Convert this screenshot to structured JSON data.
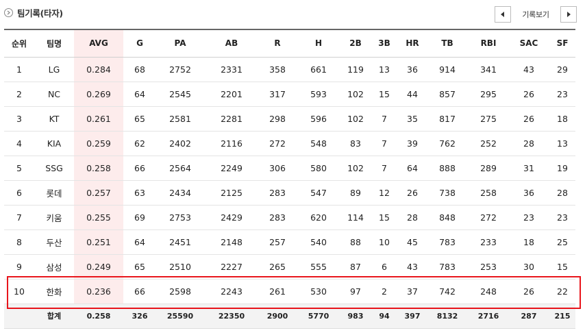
{
  "header": {
    "title": "팀기록(타자)",
    "icon": "circle-arrow-icon",
    "pager_label": "기록보기",
    "prev_icon": "triangle-left-icon",
    "next_icon": "triangle-right-icon"
  },
  "columns": [
    "순위",
    "팀명",
    "AVG",
    "G",
    "PA",
    "AB",
    "R",
    "H",
    "2B",
    "3B",
    "HR",
    "TB",
    "RBI",
    "SAC",
    "SF"
  ],
  "rows": [
    [
      "1",
      "LG",
      "0.284",
      "68",
      "2752",
      "2331",
      "358",
      "661",
      "119",
      "13",
      "36",
      "914",
      "341",
      "43",
      "29"
    ],
    [
      "2",
      "NC",
      "0.269",
      "64",
      "2545",
      "2201",
      "317",
      "593",
      "102",
      "15",
      "44",
      "857",
      "295",
      "26",
      "23"
    ],
    [
      "3",
      "KT",
      "0.261",
      "65",
      "2581",
      "2281",
      "298",
      "596",
      "102",
      "7",
      "35",
      "817",
      "275",
      "26",
      "18"
    ],
    [
      "4",
      "KIA",
      "0.259",
      "62",
      "2402",
      "2116",
      "272",
      "548",
      "83",
      "7",
      "39",
      "762",
      "252",
      "28",
      "13"
    ],
    [
      "5",
      "SSG",
      "0.258",
      "66",
      "2564",
      "2249",
      "306",
      "580",
      "102",
      "7",
      "64",
      "888",
      "289",
      "31",
      "19"
    ],
    [
      "6",
      "롯데",
      "0.257",
      "63",
      "2434",
      "2125",
      "283",
      "547",
      "89",
      "12",
      "26",
      "738",
      "258",
      "36",
      "28"
    ],
    [
      "7",
      "키움",
      "0.255",
      "69",
      "2753",
      "2429",
      "283",
      "620",
      "114",
      "15",
      "28",
      "848",
      "272",
      "23",
      "23"
    ],
    [
      "8",
      "두산",
      "0.251",
      "64",
      "2451",
      "2148",
      "257",
      "540",
      "88",
      "10",
      "45",
      "783",
      "233",
      "18",
      "25"
    ],
    [
      "9",
      "삼성",
      "0.249",
      "65",
      "2510",
      "2227",
      "265",
      "555",
      "87",
      "6",
      "43",
      "783",
      "253",
      "30",
      "15"
    ],
    [
      "10",
      "한화",
      "0.236",
      "66",
      "2598",
      "2243",
      "261",
      "530",
      "97",
      "2",
      "37",
      "742",
      "248",
      "26",
      "22"
    ]
  ],
  "totals": [
    "",
    "합계",
    "0.258",
    "326",
    "25590",
    "22350",
    "2900",
    "5770",
    "983",
    "94",
    "397",
    "8132",
    "2716",
    "287",
    "215"
  ],
  "colors": {
    "avg_column_bg": "#fdecec",
    "highlight_border": "#e8141b",
    "totals_bg": "#f3f3f3"
  }
}
